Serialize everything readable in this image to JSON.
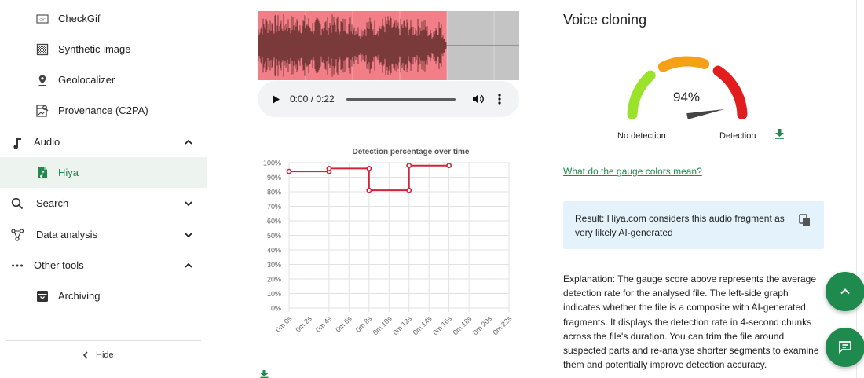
{
  "sidebar": {
    "items": [
      {
        "label": "CheckGif",
        "icon": "gif-icon"
      },
      {
        "label": "Synthetic image",
        "icon": "synthetic-image-icon"
      },
      {
        "label": "Geolocalizer",
        "icon": "location-pin-icon"
      },
      {
        "label": "Provenance (C2PA)",
        "icon": "provenance-icon"
      },
      {
        "label": "Audio",
        "icon": "music-note-icon",
        "expanded": true
      },
      {
        "label": "Hiya",
        "icon": "audio-file-icon",
        "active": true
      },
      {
        "label": "Search",
        "icon": "search-icon",
        "expanded": false
      },
      {
        "label": "Data analysis",
        "icon": "data-graph-icon",
        "expanded": false
      },
      {
        "label": "Other tools",
        "icon": "more-horiz-icon",
        "expanded": true
      },
      {
        "label": "Archiving",
        "icon": "archive-icon"
      }
    ],
    "hide_label": "Hide"
  },
  "player": {
    "time": "0:00 / 0:22"
  },
  "chart_data": {
    "type": "line",
    "title": "Detection percentage over time",
    "x": [
      "0m 0s",
      "0m 2s",
      "0m 4s",
      "0m 6s",
      "0m 8s",
      "0m 10s",
      "0m 12s",
      "0m 14s",
      "0m 16s",
      "0m 18s",
      "0m 20s",
      "0m 22s"
    ],
    "y_ticks": [
      "0%",
      "10%",
      "20%",
      "30%",
      "40%",
      "50%",
      "60%",
      "70%",
      "80%",
      "90%",
      "100%"
    ],
    "ylim": [
      0,
      100
    ],
    "series": [
      {
        "values": [
          [
            0,
            94
          ],
          [
            4,
            94
          ],
          [
            4,
            96
          ],
          [
            8,
            96
          ],
          [
            8,
            81
          ],
          [
            12,
            81
          ],
          [
            12,
            98
          ],
          [
            16,
            98
          ]
        ]
      }
    ],
    "color": "#d0243b",
    "grid": true
  },
  "right": {
    "title": "Voice cloning",
    "gauge_value": "94%",
    "gauge_percent": 94,
    "label_left": "No detection",
    "label_right": "Detection",
    "link": "What do the gauge colors mean?",
    "result": "Result: Hiya.com considers this audio fragment as very likely AI-generated",
    "explanation": "Explanation: The gauge score above represents the average detection rate for the analysed file. The left-side graph indicates whether the file is a composite with AI-generated fragments. It displays the detection rate in 4-second chunks across the file's duration. You can trim the file around suspected parts and re-analyse shorter segments to examine them and potentially improve detection accuracy."
  },
  "colors": {
    "accent": "#1f8a4c",
    "highlight": "#f27e88",
    "gauge_green": "#9be22a",
    "gauge_orange": "#f4a118",
    "gauge_red": "#e21d1d"
  }
}
